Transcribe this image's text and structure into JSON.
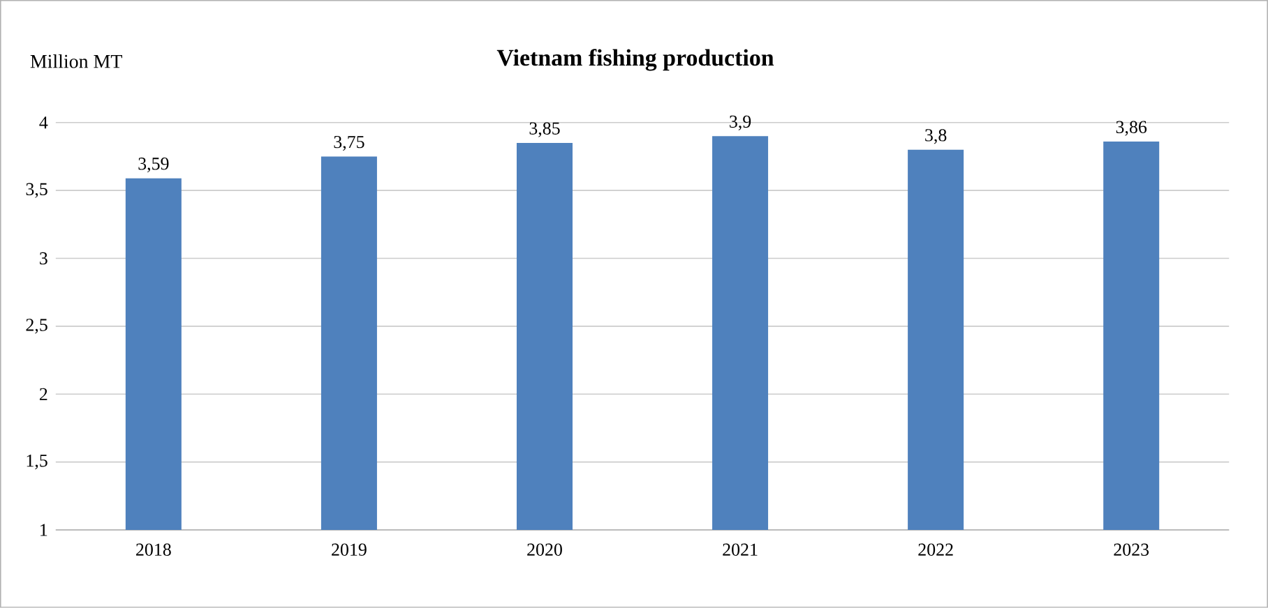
{
  "chart_data": {
    "type": "bar",
    "title": "Vietnam fishing production",
    "ylabel": "Million MT",
    "categories": [
      "2018",
      "2019",
      "2020",
      "2021",
      "2022",
      "2023"
    ],
    "values": [
      3.59,
      3.75,
      3.85,
      3.9,
      3.8,
      3.86
    ],
    "value_labels": [
      "3,59",
      "3,75",
      "3,85",
      "3,9",
      "3,8",
      "3,86"
    ],
    "color": "#4f81bd",
    "ylim": [
      1,
      4
    ],
    "yticks": [
      1,
      {
        "value": 1.5,
        "label": "1,5"
      },
      2,
      {
        "value": 2.5,
        "label": "2,5"
      },
      3,
      {
        "value": 3.5,
        "label": "3,5"
      },
      4
    ],
    "grid": "y"
  }
}
